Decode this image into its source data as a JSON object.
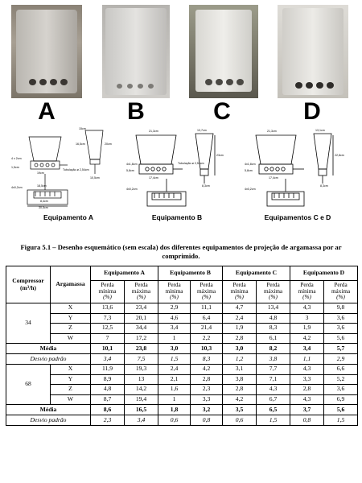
{
  "letters": [
    "A",
    "B",
    "C",
    "D"
  ],
  "equipment_labels": [
    "Equipamento A",
    "Equipamento B",
    "Equipamentos C e D"
  ],
  "drawing_notes": {
    "a": [
      "15cm",
      "16,5cm",
      "20cm",
      "4 x 2cm",
      "1,5cm",
      "19cm",
      "Tubulação ø 2,54cm",
      "10,5cm",
      "4x0,2cm",
      "30,5cm",
      "8,4cm",
      "18,5cm"
    ],
    "b": [
      "21,3cm",
      "13,7cm",
      "23cm",
      "4x1,8cm",
      "5,8cm",
      "Tubulação ø 2,54cm",
      "17,4cm",
      "4x0,2cm",
      "8,3cm"
    ],
    "c": [
      "21,3cm",
      "13,1cm",
      "22,8cm",
      "4x1,8cm",
      "5,8cm",
      "17,4cm",
      "4x0,2cm",
      "8,3cm"
    ]
  },
  "caption": "Figura 5.1 – Desenho esquemático (sem escala) dos diferentes equipamentos de projeção de argamassa por ar comprimido.",
  "table": {
    "h_compressor": "Compressor",
    "h_compressor_unit": "(m³/h)",
    "h_argamassa": "Argamassa",
    "h_equipments": [
      "Equipamento A",
      "Equipamento B",
      "Equipamento C",
      "Equipamento D"
    ],
    "h_min": [
      "Perda",
      "mínima",
      "(%)"
    ],
    "h_max": [
      "Perda",
      "máxima",
      "(%)"
    ],
    "groups": [
      {
        "compressor": "34",
        "rows": [
          {
            "arg": "X",
            "v": [
              "13,6",
              "23,4",
              "2,9",
              "11,1",
              "4,7",
              "13,4",
              "4,3",
              "9,8"
            ]
          },
          {
            "arg": "Y",
            "v": [
              "7,3",
              "20,1",
              "4,6",
              "6,4",
              "2,4",
              "4,8",
              "3",
              "3,6"
            ]
          },
          {
            "arg": "Z",
            "v": [
              "12,5",
              "34,4",
              "3,4",
              "21,4",
              "1,9",
              "8,3",
              "1,9",
              "3,6"
            ]
          },
          {
            "arg": "W",
            "v": [
              "7",
              "17,2",
              "1",
              "2,2",
              "2,8",
              "6,1",
              "4,2",
              "5,6"
            ]
          }
        ],
        "media_label": "Média",
        "media": [
          "10,1",
          "23,8",
          "3,0",
          "10,3",
          "3,0",
          "8,2",
          "3,4",
          "5,7"
        ],
        "desvio_label": "Desvio padrão",
        "desvio": [
          "3,4",
          "7,5",
          "1,5",
          "8,3",
          "1,2",
          "3,8",
          "1,1",
          "2,9"
        ]
      },
      {
        "compressor": "68",
        "rows": [
          {
            "arg": "X",
            "v": [
              "11,9",
              "19,3",
              "2,4",
              "4,2",
              "3,1",
              "7,7",
              "4,3",
              "6,6"
            ]
          },
          {
            "arg": "Y",
            "v": [
              "8,9",
              "13",
              "2,1",
              "2,8",
              "3,8",
              "7,1",
              "3,3",
              "5,2"
            ]
          },
          {
            "arg": "Z",
            "v": [
              "4,8",
              "14,2",
              "1,6",
              "2,3",
              "2,8",
              "4,3",
              "2,8",
              "3,6"
            ]
          },
          {
            "arg": "W",
            "v": [
              "8,7",
              "19,4",
              "1",
              "3,3",
              "4,2",
              "6,7",
              "4,3",
              "6,9"
            ]
          }
        ],
        "media_label": "Média",
        "media": [
          "8,6",
          "16,5",
          "1,8",
          "3,2",
          "3,5",
          "6,5",
          "3,7",
          "5,6"
        ],
        "desvio_label": "Desvio padrão",
        "desvio": [
          "2,3",
          "3,4",
          "0,6",
          "0,8",
          "0,6",
          "1,5",
          "0,8",
          "1,5"
        ]
      }
    ]
  }
}
